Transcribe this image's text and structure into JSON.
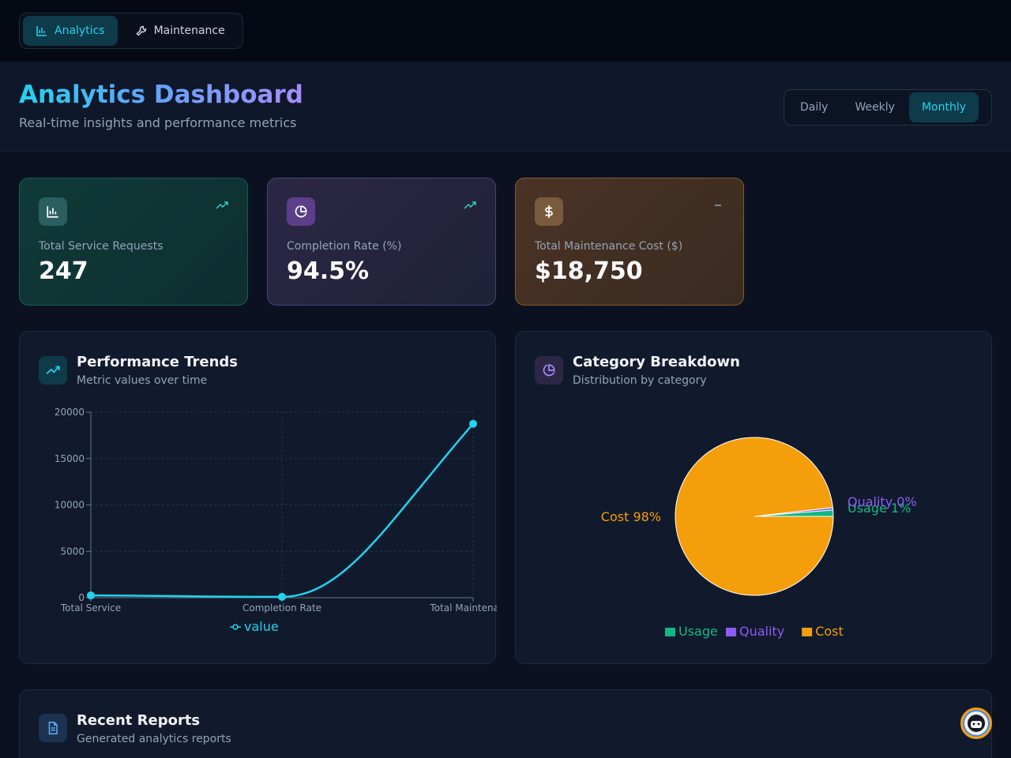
{
  "nav": {
    "tabs": [
      {
        "label": "Analytics",
        "icon": "bar-chart-icon",
        "active": true
      },
      {
        "label": "Maintenance",
        "icon": "wrench-icon",
        "active": false
      }
    ]
  },
  "header": {
    "title": "Analytics Dashboard",
    "subtitle": "Real-time insights and performance metrics",
    "periods": [
      "Daily",
      "Weekly",
      "Monthly"
    ],
    "active_period": "Monthly"
  },
  "stats": [
    {
      "label": "Total Service Requests",
      "value": "247",
      "icon": "bar-chart-icon",
      "trend": "trending-up-icon",
      "color": "#2dd4bf"
    },
    {
      "label": "Completion Rate (%)",
      "value": "94.5%",
      "icon": "pie-chart-icon",
      "trend": "trending-up-icon",
      "color": "#a78bfa"
    },
    {
      "label": "Total Maintenance Cost ($)",
      "value": "$18,750",
      "icon": "dollar-icon",
      "trend": "minus-icon",
      "color": "#f59e0b"
    }
  ],
  "performance": {
    "title": "Performance Trends",
    "subtitle": "Metric values over time",
    "icon": "trending-up-icon"
  },
  "category": {
    "title": "Category Breakdown",
    "subtitle": "Distribution by category",
    "icon": "pie-chart-icon"
  },
  "reports": {
    "title": "Recent Reports",
    "subtitle": "Generated analytics reports",
    "icon": "document-icon"
  },
  "colors": {
    "accent": "#22d3ee",
    "usage": "#10b981",
    "quality": "#8b5cf6",
    "cost": "#f59e0b"
  },
  "chart_data": [
    {
      "type": "line",
      "categories": [
        "Total Service",
        "Completion Rate",
        "Total Maintenance"
      ],
      "series": [
        {
          "name": "value",
          "values": [
            247,
            94.5,
            18750
          ]
        }
      ],
      "yticks": [
        "0",
        "5000",
        "10000",
        "15000",
        "20000"
      ],
      "ylim": [
        0,
        20000
      ],
      "grid": true,
      "legend": "bottom"
    },
    {
      "type": "pie",
      "categories": [
        "Usage",
        "Quality",
        "Cost"
      ],
      "values": [
        1.3,
        0.5,
        98.2
      ],
      "labels": [
        "Usage 1%",
        "Quality 0%",
        "Cost 98%"
      ],
      "legend": "bottom"
    }
  ]
}
